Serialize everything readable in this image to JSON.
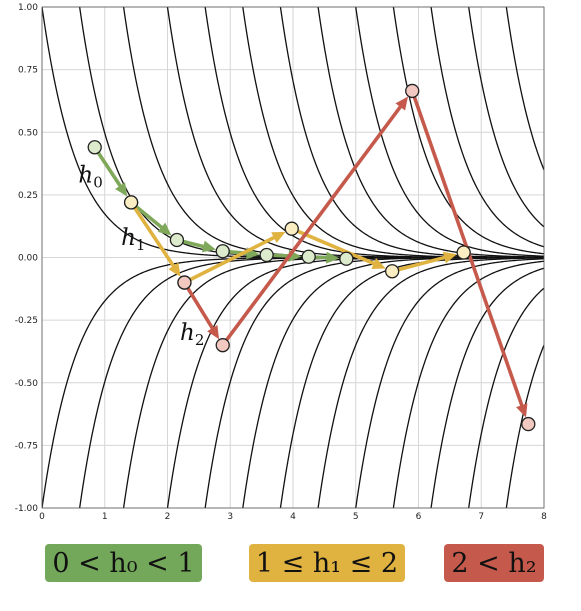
{
  "chart_data": {
    "type": "line",
    "x_range": [
      0,
      8
    ],
    "y_range": [
      -1.0,
      1.0
    ],
    "x_ticks": [
      "0",
      "1",
      "2",
      "3",
      "4",
      "5",
      "6",
      "7",
      "8"
    ],
    "y_ticks": [
      "1.00",
      "0.75",
      "0.50",
      "0.25",
      "0.00",
      "-0.25",
      "-0.50",
      "-0.75",
      "-1.00"
    ],
    "grid": true,
    "solution_curves": {
      "description_free": true,
      "decay_rate": 1.75,
      "upper_offsets": [
        0.0,
        0.6,
        1.3,
        2.0,
        2.6,
        3.2,
        3.8,
        4.4,
        5.0,
        5.6,
        6.2,
        6.8,
        7.4
      ],
      "lower_offsets": [
        0.0,
        0.6,
        1.3,
        2.0,
        2.6,
        3.2,
        3.8,
        4.4,
        5.0,
        5.6,
        6.2,
        6.8,
        7.4
      ]
    },
    "paths": [
      {
        "key": "green",
        "color": "#7fa85a",
        "fill": "#dcebcb",
        "points": [
          [
            0.84,
            0.44
          ],
          [
            1.42,
            0.22
          ],
          [
            2.15,
            0.07
          ],
          [
            2.88,
            0.025
          ],
          [
            3.58,
            0.01
          ],
          [
            4.25,
            0.003
          ],
          [
            4.85,
            -0.005
          ]
        ]
      },
      {
        "key": "yellow",
        "color": "#e0b341",
        "fill": "#fbeec2",
        "points": [
          [
            1.42,
            0.22
          ],
          [
            2.27,
            -0.1
          ],
          [
            3.98,
            0.115
          ],
          [
            5.58,
            -0.055
          ],
          [
            6.72,
            0.02
          ]
        ]
      },
      {
        "key": "red",
        "color": "#c55a4c",
        "fill": "#f2c9c0",
        "points": [
          [
            2.27,
            -0.1
          ],
          [
            2.88,
            -0.35
          ],
          [
            5.9,
            0.665
          ],
          [
            7.75,
            -0.665
          ]
        ]
      }
    ],
    "annotations": [
      {
        "base": "h",
        "sub": "0",
        "x": 0.58,
        "y": 0.3
      },
      {
        "base": "h",
        "sub": "1",
        "x": 1.26,
        "y": 0.05
      },
      {
        "base": "h",
        "sub": "2",
        "x": 2.2,
        "y": -0.33
      }
    ]
  },
  "legend": [
    {
      "text": "0 < h₀ < 1",
      "color": "#73a85a"
    },
    {
      "text": "1 ≤ h₁ ≤ 2",
      "color": "#e0b341"
    },
    {
      "text": "2 < h₂",
      "color": "#c55a4c"
    }
  ]
}
